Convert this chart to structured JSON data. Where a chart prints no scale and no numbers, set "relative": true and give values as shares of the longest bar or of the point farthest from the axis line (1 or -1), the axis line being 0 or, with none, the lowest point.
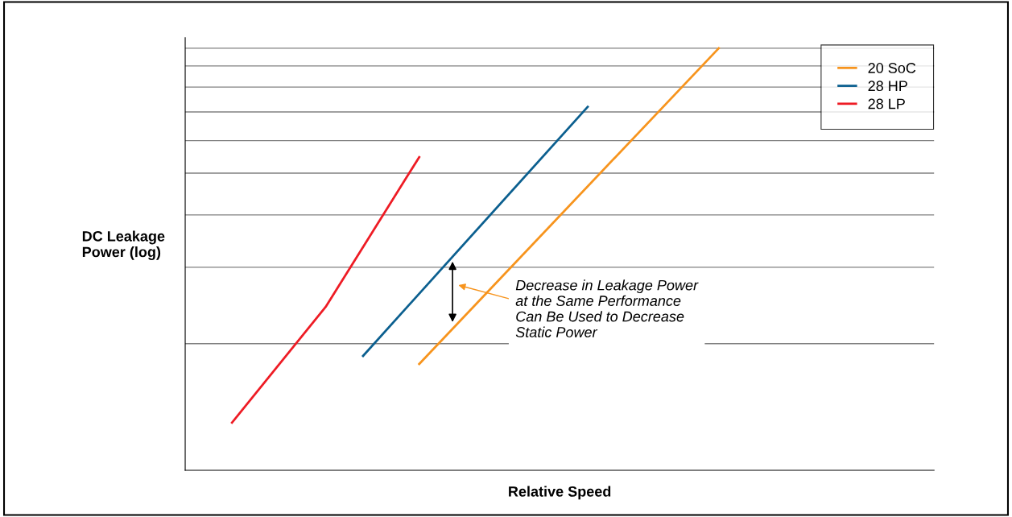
{
  "chart_data": {
    "type": "line",
    "relative": true,
    "xlabel": "Relative Speed",
    "ylabel": "DC Leakage\nPower (log)",
    "categories": [
      null,
      null,
      null,
      null,
      null,
      null,
      null,
      null,
      null,
      null,
      null,
      null,
      null,
      null,
      null,
      null,
      null,
      null,
      null,
      null,
      null,
      null,
      null,
      null,
      null,
      null,
      null,
      null,
      null,
      null,
      null,
      null,
      null,
      null,
      null,
      null,
      null,
      null,
      null,
      null
    ],
    "series": [
      {
        "name": "20 SoC",
        "color": "#f7941d",
        "values": [
          null,
          null,
          null,
          null,
          null,
          null,
          null,
          null,
          null,
          null,
          null,
          null,
          0.252,
          null,
          null,
          null,
          null,
          null,
          null,
          null,
          null,
          null,
          null,
          null,
          null,
          null,
          null,
          null,
          1.0,
          null,
          null,
          null,
          null,
          null,
          null,
          null,
          null,
          null,
          null,
          null
        ]
      },
      {
        "name": "28 HP",
        "color": "#0b5f8f",
        "values": [
          null,
          null,
          null,
          null,
          null,
          null,
          null,
          null,
          null,
          0.271,
          null,
          null,
          null,
          null,
          null,
          null,
          null,
          null,
          null,
          null,
          null,
          0.861,
          null,
          null,
          null,
          null,
          null,
          null,
          null,
          null,
          null,
          null,
          null,
          null,
          null,
          null,
          null,
          null,
          null,
          null
        ]
      },
      {
        "name": "28 LP",
        "color": "#ee1c25",
        "values": [
          null,
          null,
          0.113,
          null,
          null,
          null,
          null,
          0.387,
          null,
          null,
          null,
          null,
          0.742,
          null,
          null,
          null,
          null,
          null,
          null,
          null,
          null,
          null,
          null,
          null,
          null,
          null,
          null,
          null,
          null,
          null,
          null,
          null,
          null,
          null,
          null,
          null,
          null,
          null,
          null,
          null
        ]
      }
    ],
    "ref_lines": [
      {
        "axis": "y",
        "value": 1.0,
        "color": "#808080"
      },
      {
        "axis": "y",
        "value": 0.958,
        "color": "#808080"
      },
      {
        "axis": "y",
        "value": 0.908,
        "color": "#808080"
      },
      {
        "axis": "y",
        "value": 0.849,
        "color": "#808080"
      },
      {
        "axis": "y",
        "value": 0.781,
        "color": "#808080"
      },
      {
        "axis": "y",
        "value": 0.704,
        "color": "#808080"
      },
      {
        "axis": "y",
        "value": 0.605,
        "color": "#808080"
      },
      {
        "axis": "y",
        "value": 0.481,
        "color": "#808080"
      },
      {
        "axis": "y",
        "value": 0.3,
        "color": "#808080"
      }
    ],
    "annotations": [
      "Decrease in Leakage Power\nat the Same Performance\nCan Be Used to Decrease\nStatic Power"
    ],
    "legend": "top right",
    "marker": "none",
    "line_style": "solid"
  }
}
